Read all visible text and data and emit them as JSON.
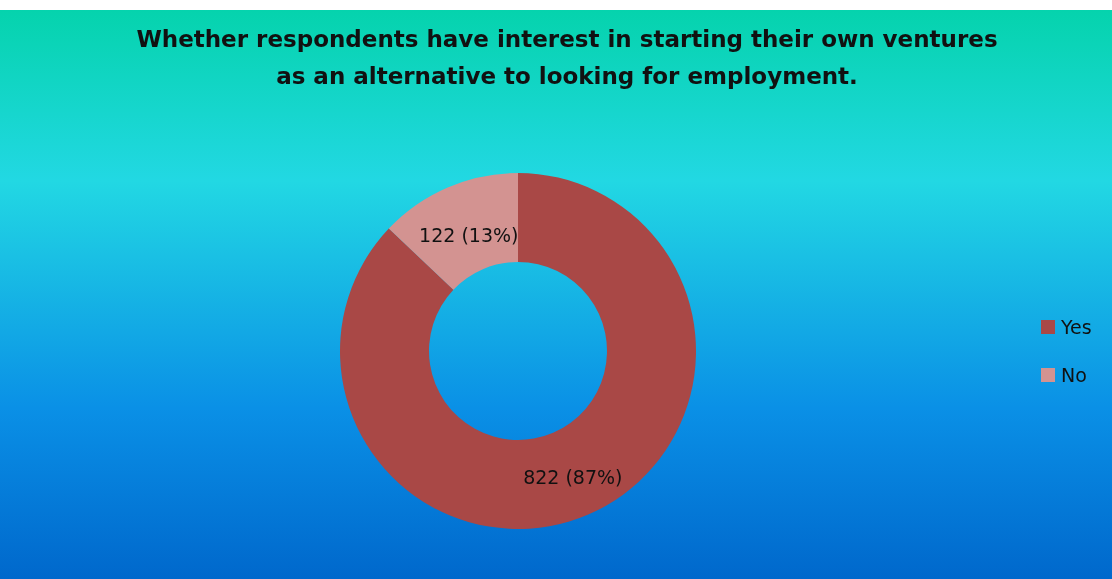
{
  "chart_data": {
    "type": "donut",
    "title": "Whether respondents have interest in starting their own ventures\nas an alternative to looking for employment.",
    "categories": [
      "Yes",
      "No"
    ],
    "values": [
      822,
      122
    ],
    "colors": [
      "#a94846",
      "#d39391"
    ],
    "value_labels": [
      "822 (87%)",
      "122 (13%)"
    ],
    "legend": "right"
  }
}
